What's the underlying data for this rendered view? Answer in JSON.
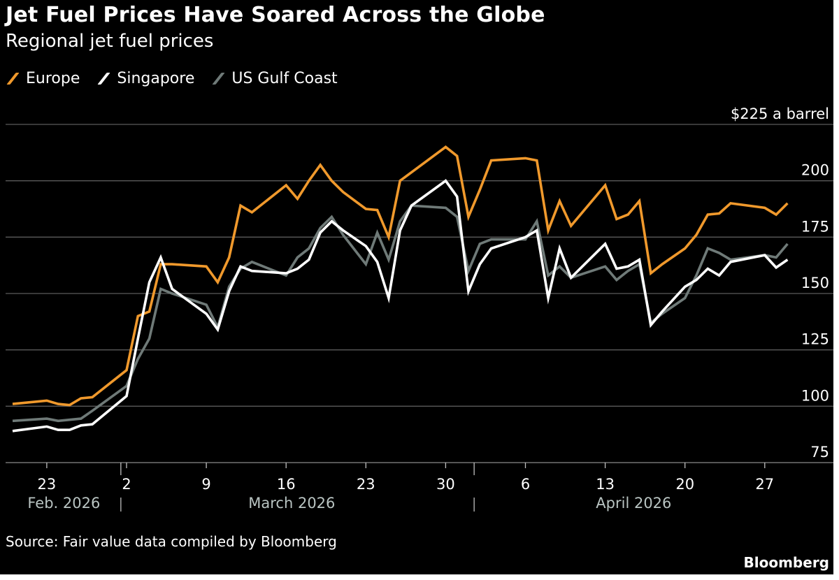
{
  "title": "Jet Fuel Prices Have Soared Across the Globe",
  "subtitle": "Regional jet fuel prices",
  "source": "Source: Fair value data compiled by Bloomberg",
  "brand": "Bloomberg",
  "colors": {
    "background": "#000000",
    "gridline": "#5a5a5a",
    "text": "#ffffff",
    "month_label": "#b9c4c2",
    "europe": "#f0992c",
    "singapore": "#ffffff",
    "us_gulf_coast": "#6f7a78"
  },
  "chart_data": {
    "type": "line",
    "title": "Jet Fuel Prices Have Soared Across the Globe",
    "subtitle": "Regional jet fuel prices",
    "xlabel": "",
    "ylabel": "",
    "unit_label": "$225 a barrel",
    "ylim": [
      75,
      225
    ],
    "yticks": [
      75,
      100,
      125,
      150,
      175,
      200,
      225
    ],
    "ytick_labels": [
      "75",
      "100",
      "125",
      "150",
      "175",
      "200",
      "$225 a barrel"
    ],
    "grid": true,
    "legend": "top-left",
    "x_unit": "days from Feb 20, 2026",
    "xlim": [
      0,
      69
    ],
    "xticks": [
      {
        "x": 3,
        "label": "23"
      },
      {
        "x": 10,
        "label": "2"
      },
      {
        "x": 17,
        "label": "9"
      },
      {
        "x": 24,
        "label": "16"
      },
      {
        "x": 31,
        "label": "23"
      },
      {
        "x": 38,
        "label": "30"
      },
      {
        "x": 45,
        "label": "6"
      },
      {
        "x": 52,
        "label": "13"
      },
      {
        "x": 59,
        "label": "20"
      },
      {
        "x": 66,
        "label": "27"
      }
    ],
    "month_labels": [
      {
        "label": "Feb. 2026",
        "x": 4.5,
        "divider": true
      },
      {
        "label": "March 2026",
        "x": 24.5,
        "divider": false
      },
      {
        "label": "April 2026",
        "x": 54.5,
        "divider": false
      }
    ],
    "month_dividers": [
      9.5,
      40.5
    ],
    "series": [
      {
        "name": "Europe",
        "color": "#f0992c",
        "x": [
          0,
          3,
          4,
          5,
          6,
          7,
          10,
          11,
          12,
          13,
          14,
          17,
          18,
          19,
          20,
          21,
          24,
          25,
          26,
          27,
          28,
          29,
          31,
          32,
          33,
          34,
          38,
          39,
          40,
          41,
          42,
          45,
          46,
          47,
          48,
          49,
          52,
          53,
          54,
          55,
          56,
          57,
          59,
          60,
          61,
          62,
          63,
          66,
          67,
          68
        ],
        "values": [
          101,
          102.5,
          101,
          100.5,
          103.5,
          104,
          116,
          140,
          142,
          163,
          163,
          162,
          155,
          166,
          189,
          186,
          198,
          192,
          200,
          207,
          200,
          195,
          187.5,
          187,
          175,
          200,
          215,
          211,
          184,
          196,
          209,
          210,
          209,
          178,
          191,
          180,
          198,
          183,
          185,
          191,
          159,
          163,
          170,
          176,
          185,
          185.5,
          190,
          188,
          185,
          190
        ]
      },
      {
        "name": "Singapore",
        "color": "#ffffff",
        "x": [
          0,
          3,
          4,
          5,
          6,
          7,
          10,
          11,
          12,
          13,
          14,
          17,
          18,
          19,
          20,
          21,
          24,
          25,
          26,
          27,
          28,
          29,
          31,
          32,
          33,
          34,
          35,
          38,
          39,
          40,
          41,
          42,
          45,
          46,
          47,
          48,
          49,
          52,
          53,
          54,
          55,
          56,
          57,
          59,
          60,
          61,
          62,
          63,
          66,
          67,
          68
        ],
        "values": [
          89,
          91,
          89.5,
          89.5,
          91.5,
          92,
          104.5,
          130,
          155,
          166,
          152,
          141,
          134,
          151,
          162,
          160,
          159,
          161,
          165,
          177,
          182,
          178,
          171,
          164,
          148,
          178,
          189,
          200,
          193,
          151,
          163,
          170,
          175,
          178,
          148,
          170,
          157,
          172,
          161,
          162,
          165,
          136,
          142,
          153,
          156,
          161,
          158,
          164,
          167,
          161.5,
          165
        ]
      },
      {
        "name": "US Gulf Coast",
        "color": "#6f7a78",
        "x": [
          0,
          3,
          4,
          5,
          6,
          7,
          10,
          11,
          12,
          13,
          14,
          17,
          18,
          19,
          20,
          21,
          24,
          25,
          26,
          27,
          28,
          29,
          31,
          32,
          33,
          34,
          35,
          38,
          39,
          40,
          41,
          42,
          45,
          46,
          47,
          48,
          49,
          52,
          53,
          54,
          55,
          56,
          57,
          59,
          60,
          61,
          62,
          63,
          66,
          67,
          68
        ],
        "values": [
          93.5,
          94.5,
          93.5,
          94,
          94.5,
          98,
          109,
          121,
          130,
          152,
          150,
          145,
          135,
          153,
          161,
          164,
          158,
          166,
          170,
          179,
          184,
          176,
          163,
          177,
          165,
          182,
          189,
          188,
          184,
          160,
          172,
          174,
          174,
          182,
          158,
          162,
          157,
          162,
          156,
          160,
          163,
          137,
          141,
          148,
          158,
          170,
          168,
          165,
          167,
          166,
          172
        ]
      }
    ]
  }
}
